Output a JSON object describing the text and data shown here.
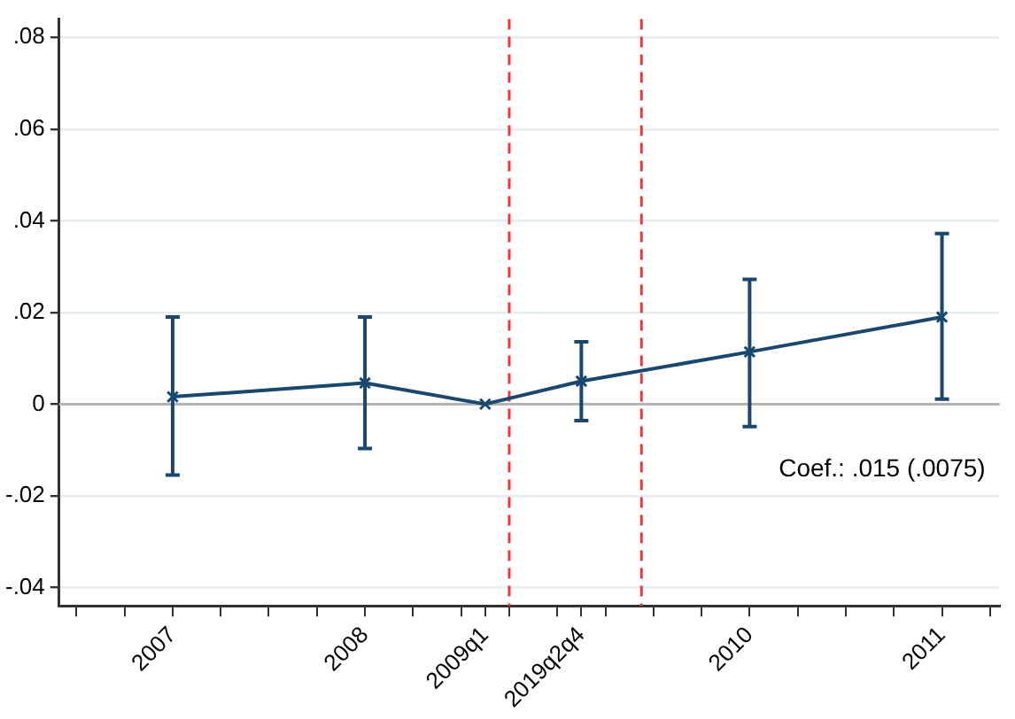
{
  "chart_data": {
    "type": "line",
    "x": [
      2007,
      2008,
      2008.625,
      2009.125,
      2010,
      2011
    ],
    "series": [
      {
        "color": "#1a476f",
        "values": [
          0.0016,
          0.0046,
          0,
          0.005,
          0.0114,
          0.019
        ],
        "errors": [
          [
            -0.0155,
            0.019
          ],
          [
            -0.0097,
            0.019
          ],
          null,
          [
            -0.0036,
            0.0136
          ],
          [
            -0.0049,
            0.0272
          ],
          [
            0.0011,
            0.0372
          ]
        ]
      }
    ],
    "xlim": [
      2006.41,
      2011.3
    ],
    "xticks": [
      {
        "value": 2006.5,
        "label": null
      },
      {
        "value": 2006.75,
        "label": null
      },
      2007,
      {
        "value": 2007.25,
        "label": null
      },
      {
        "value": 2007.5,
        "label": null
      },
      {
        "value": 2007.75,
        "label": null
      },
      2008,
      {
        "value": 2008.25,
        "label": null
      },
      {
        "value": 2008.5,
        "label": null
      },
      {
        "value": 2008.625,
        "label": "2009q1"
      },
      {
        "value": 2008.75,
        "label": null
      },
      {
        "value": 2009,
        "label": null
      },
      {
        "value": 2009.125,
        "label": "2019q2q4"
      },
      {
        "value": 2009.25,
        "label": null
      },
      {
        "value": 2009.5,
        "label": null
      },
      {
        "value": 2009.75,
        "label": null
      },
      2010,
      {
        "value": 2010.25,
        "label": null
      },
      {
        "value": 2010.5,
        "label": null
      },
      {
        "value": 2010.75,
        "label": null
      },
      2011,
      {
        "value": 2011.25,
        "label": null
      }
    ],
    "ylim": [
      -0.044,
      0.084
    ],
    "yticks": [
      {
        "value": -0.04,
        "label": "-.04"
      },
      {
        "value": -0.02,
        "label": "-.02"
      },
      {
        "value": 0,
        "label": "0"
      },
      {
        "value": 0.02,
        "label": ".02"
      },
      {
        "value": 0.04,
        "label": ".04"
      },
      {
        "value": 0.06,
        "label": ".06"
      },
      {
        "value": 0.08,
        "label": ".08"
      }
    ],
    "ref_lines": [
      {
        "axis": "y",
        "value": 0,
        "color": "#b4b4b4",
        "line_style": "solid"
      },
      {
        "axis": "x",
        "value": 2008.75,
        "color": "#ff3030",
        "line_style": "dashed"
      },
      {
        "axis": "x",
        "value": 2009.4375,
        "color": "#ff3030",
        "line_style": "dashed"
      }
    ],
    "annotations": [
      "Coef.: .015 (.0075)"
    ],
    "grid": "y",
    "legend": false,
    "marker": "cross",
    "line_style": "solid"
  }
}
